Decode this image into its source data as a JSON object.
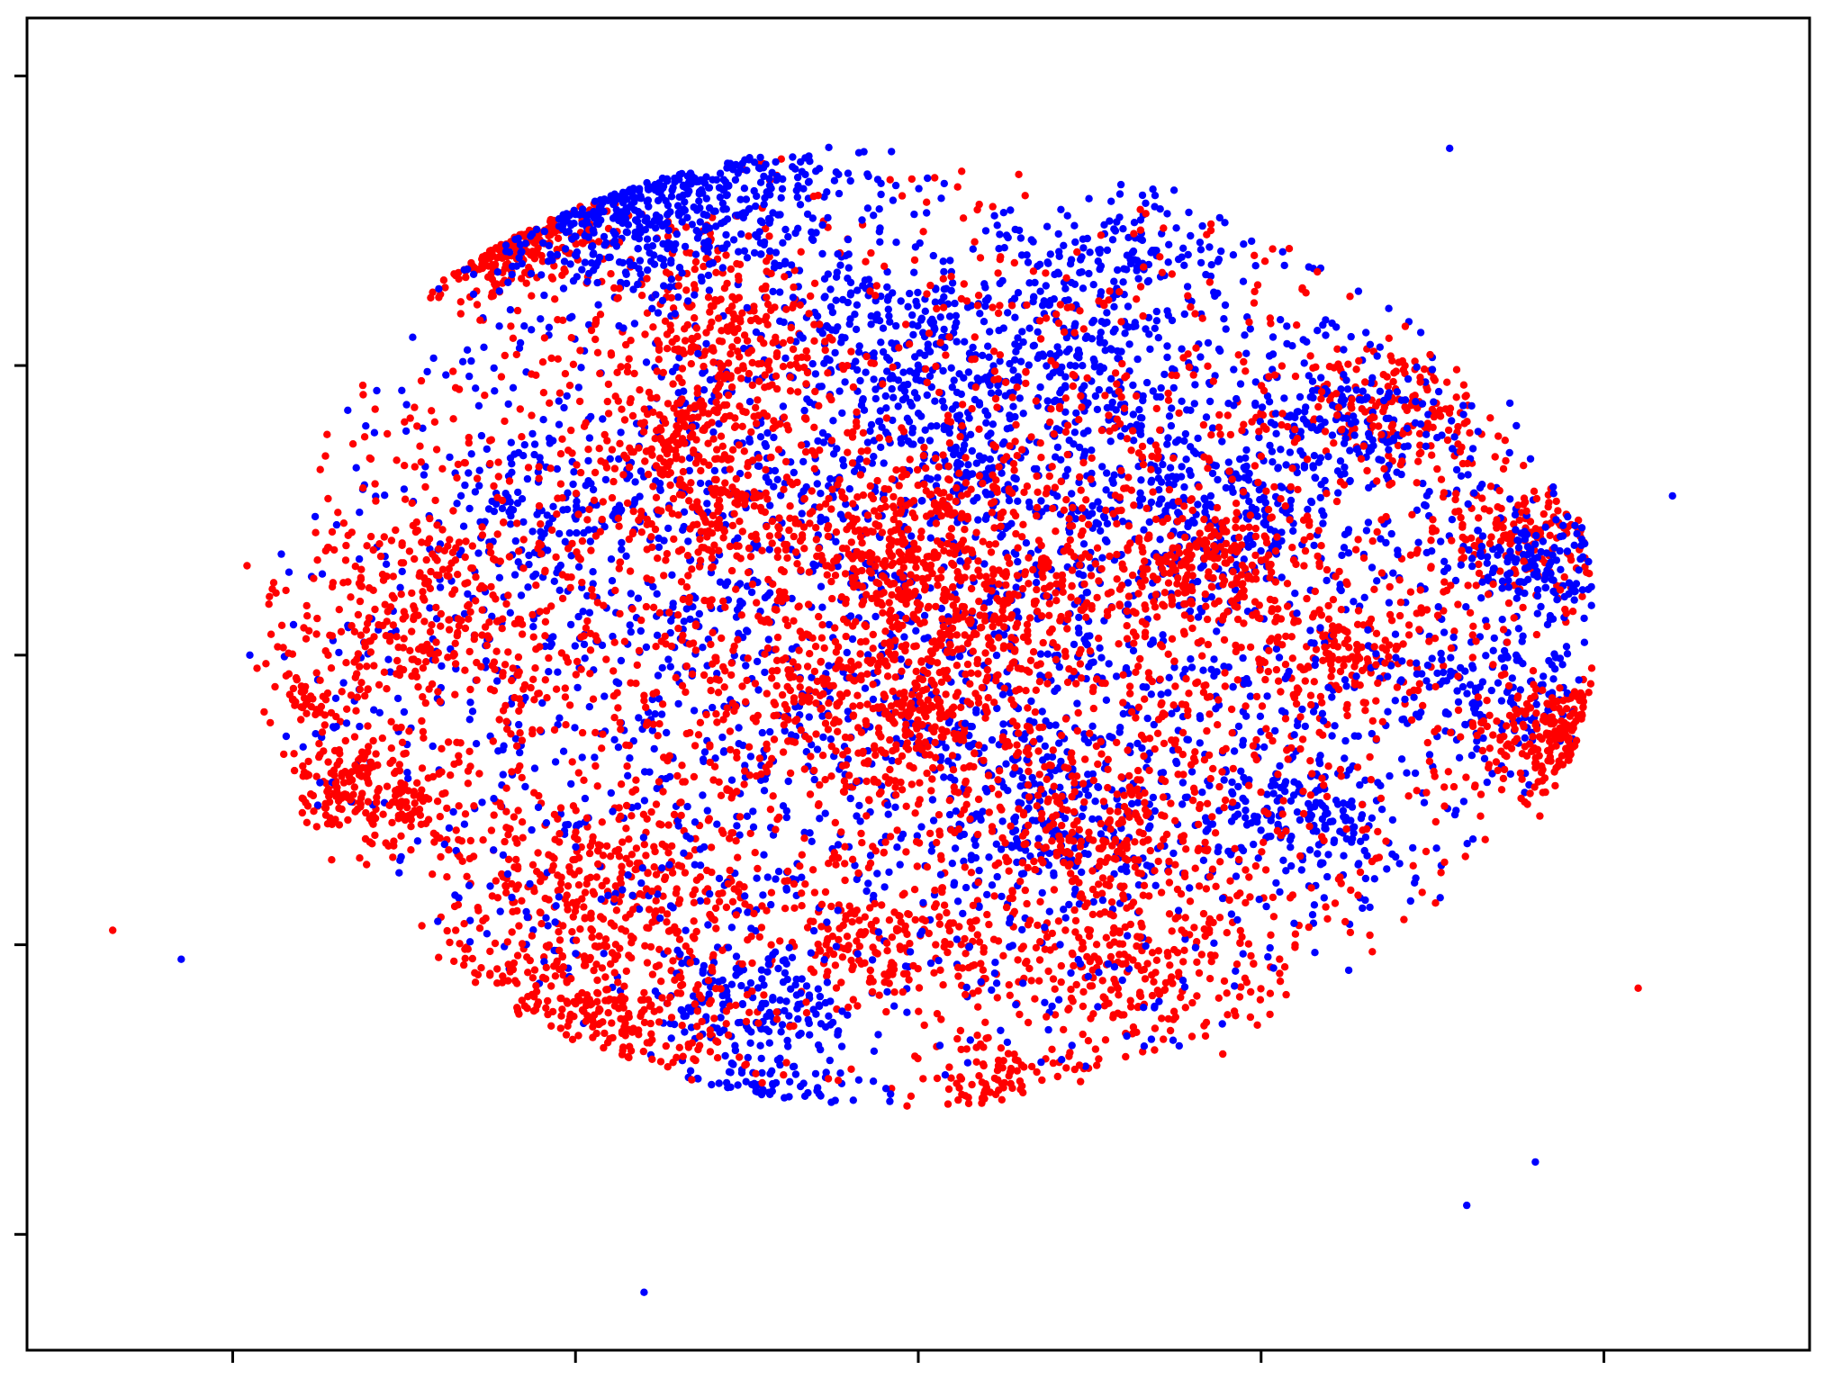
{
  "chart_data": {
    "type": "scatter",
    "title": "",
    "xlabel": "",
    "ylabel": "",
    "xlim": [
      -52,
      52
    ],
    "ylim": [
      -48,
      44
    ],
    "x_ticks": [
      -40,
      -20,
      0,
      20,
      40
    ],
    "y_ticks": [
      -40,
      -20,
      0,
      20,
      40
    ],
    "x_tick_labels": [
      "",
      "",
      "",
      "",
      ""
    ],
    "y_tick_labels": [
      "",
      "",
      "",
      "",
      ""
    ],
    "grid": false,
    "legend": "none",
    "series": [
      {
        "color": "#0000ff",
        "note_clusters": [
          {
            "cx": -17,
            "cy": 33,
            "sx": 6,
            "sy": 4,
            "n": 420
          },
          {
            "cx": -22,
            "cy": 36,
            "sx": 5,
            "sy": 3,
            "n": 250
          },
          {
            "cx": -1,
            "cy": 23,
            "sx": 3,
            "sy": 2,
            "n": 120
          },
          {
            "cx": 12,
            "cy": 28,
            "sx": 3,
            "sy": 2,
            "n": 110
          },
          {
            "cx": 9,
            "cy": 22,
            "sx": 3,
            "sy": 3,
            "n": 130
          },
          {
            "cx": 3,
            "cy": 16,
            "sx": 3,
            "sy": 3,
            "n": 120
          },
          {
            "cx": 25,
            "cy": 16,
            "sx": 3,
            "sy": 2,
            "n": 130
          },
          {
            "cx": 17,
            "cy": 10,
            "sx": 4,
            "sy": 3,
            "n": 180
          },
          {
            "cx": 37,
            "cy": 6,
            "sx": 3,
            "sy": 2,
            "n": 140
          },
          {
            "cx": 34,
            "cy": -3,
            "sx": 3,
            "sy": 2,
            "n": 130
          },
          {
            "cx": 23,
            "cy": -11,
            "sx": 3,
            "sy": 3,
            "n": 180
          },
          {
            "cx": 8,
            "cy": -11,
            "sx": 4,
            "sy": 3,
            "n": 200
          },
          {
            "cx": -9,
            "cy": -24,
            "sx": 3,
            "sy": 2,
            "n": 150
          },
          {
            "cx": -10,
            "cy": -32,
            "sx": 3,
            "sy": 1.5,
            "n": 90
          },
          {
            "cx": -22,
            "cy": 10,
            "sx": 3,
            "sy": 2,
            "n": 80
          },
          {
            "cx": 0,
            "cy": 0,
            "sx": 22,
            "sy": 16,
            "n": 2100
          },
          {
            "cx": 5,
            "cy": 15,
            "sx": 14,
            "sy": 7,
            "n": 500
          }
        ],
        "outliers": [
          [
            -39,
            0
          ],
          [
            -43,
            -21
          ],
          [
            -16,
            -44
          ],
          [
            31,
            35
          ],
          [
            44,
            11
          ],
          [
            32,
            -38
          ],
          [
            36,
            -35
          ]
        ]
      },
      {
        "color": "#ff0000",
        "note_clusters": [
          {
            "cx": -26,
            "cy": 30,
            "sx": 3,
            "sy": 2,
            "n": 220
          },
          {
            "cx": -15,
            "cy": 38,
            "sx": 3,
            "sy": 1.5,
            "n": 160
          },
          {
            "cx": -12,
            "cy": 22,
            "sx": 3,
            "sy": 4,
            "n": 260
          },
          {
            "cx": -15,
            "cy": 15,
            "sx": 2,
            "sy": 1.5,
            "n": 80
          },
          {
            "cx": -12,
            "cy": 10,
            "sx": 2,
            "sy": 2,
            "n": 100
          },
          {
            "cx": -2,
            "cy": 8,
            "sx": 3,
            "sy": 2,
            "n": 160
          },
          {
            "cx": 3,
            "cy": 4,
            "sx": 3,
            "sy": 3,
            "n": 180
          },
          {
            "cx": -1,
            "cy": -4,
            "sx": 4,
            "sy": 3,
            "n": 230
          },
          {
            "cx": -29,
            "cy": 2,
            "sx": 4,
            "sy": 4,
            "n": 220
          },
          {
            "cx": -31,
            "cy": -10,
            "sx": 3,
            "sy": 2,
            "n": 150
          },
          {
            "cx": -21,
            "cy": -16,
            "sx": 3,
            "sy": 3,
            "n": 150
          },
          {
            "cx": -19,
            "cy": -25,
            "sx": 5,
            "sy": 3,
            "n": 260
          },
          {
            "cx": -15,
            "cy": -16,
            "sx": 3,
            "sy": 3,
            "n": 140
          },
          {
            "cx": -2,
            "cy": -20,
            "sx": 3,
            "sy": 2,
            "n": 150
          },
          {
            "cx": 11,
            "cy": -13,
            "sx": 3,
            "sy": 3,
            "n": 170
          },
          {
            "cx": 12,
            "cy": -22,
            "sx": 5,
            "sy": 3,
            "n": 240
          },
          {
            "cx": 17,
            "cy": 6,
            "sx": 3,
            "sy": 2,
            "n": 160
          },
          {
            "cx": 25,
            "cy": 0,
            "sx": 3,
            "sy": 2,
            "n": 120
          },
          {
            "cx": 28,
            "cy": 17,
            "sx": 3,
            "sy": 2,
            "n": 140
          },
          {
            "cx": 36,
            "cy": 8,
            "sx": 3,
            "sy": 2,
            "n": 150
          },
          {
            "cx": 39,
            "cy": -6,
            "sx": 3,
            "sy": 2,
            "n": 170
          },
          {
            "cx": 43,
            "cy": -5,
            "sx": 2,
            "sy": 2,
            "n": 140
          },
          {
            "cx": -34,
            "cy": -9,
            "sx": 1.5,
            "sy": 1.5,
            "n": 60
          },
          {
            "cx": -36,
            "cy": -3,
            "sx": 1,
            "sy": 1,
            "n": 30
          },
          {
            "cx": 2,
            "cy": -37,
            "sx": 2,
            "sy": 2,
            "n": 140
          },
          {
            "cx": -5,
            "cy": -37,
            "sx": 2,
            "sy": 1.5,
            "n": 90
          },
          {
            "cx": 4,
            "cy": -30,
            "sx": 2,
            "sy": 2,
            "n": 80
          },
          {
            "cx": 0,
            "cy": 2,
            "sx": 22,
            "sy": 15,
            "n": 2600
          }
        ],
        "outliers": [
          [
            -47,
            -19
          ],
          [
            42,
            -23
          ],
          [
            -26,
            6
          ],
          [
            -30,
            3
          ]
        ]
      }
    ]
  }
}
